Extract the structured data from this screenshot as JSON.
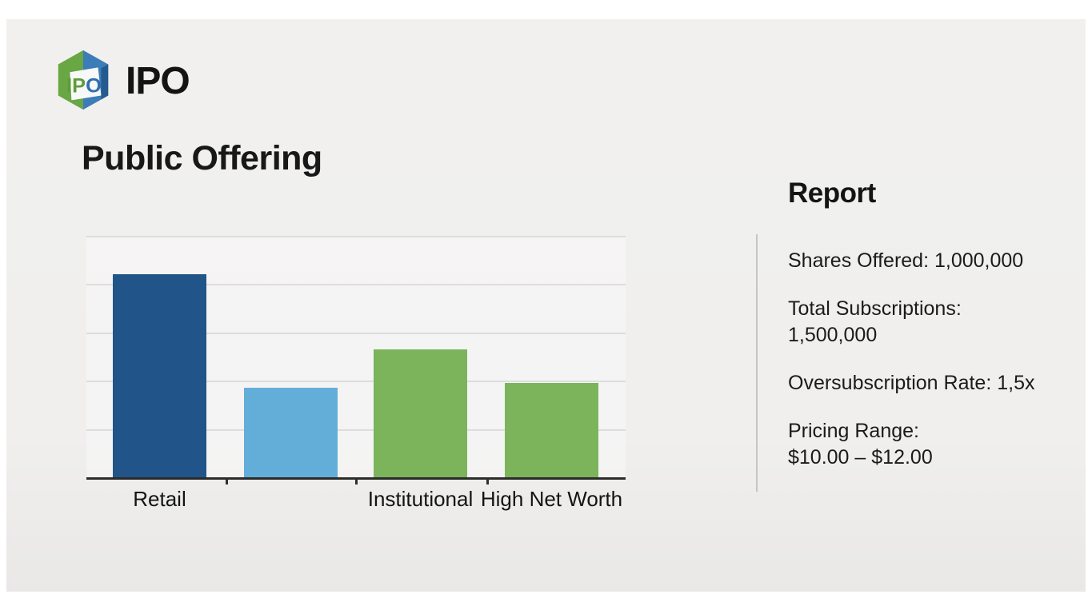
{
  "brand": {
    "logo_text": "IPO",
    "logo_colors": {
      "green": "#69a644",
      "blue": "#3c7cb8",
      "navy": "#245a8e"
    }
  },
  "slide": {
    "title": "Public Offering"
  },
  "chart_data": {
    "type": "bar",
    "title": "Public Offering",
    "categories": [
      "Retail",
      "",
      "Institutional",
      "High Net Worth"
    ],
    "values": [
      4.2,
      1.85,
      2.65,
      1.95
    ],
    "colors": [
      "#215589",
      "#63aed8",
      "#7cb45c",
      "#7cb45c"
    ],
    "xlabel": "",
    "ylabel": "",
    "ylim": [
      0,
      5
    ],
    "y_tick_labels": [],
    "gridlines": "horizontal",
    "legend": "none"
  },
  "report": {
    "heading": "Report",
    "items": [
      "Shares Offered: 1,000,000",
      "Total Subscriptions:\n1,500,000",
      "Oversubscription Rate: 1,5x",
      "Pricing Range:\n$10.00 – $12.00"
    ]
  },
  "colors": {
    "slide_background": "#f0efee",
    "axis": "#2b2b2b",
    "gridline": "#dedddc",
    "divider": "#c5c5c5",
    "text": "#1b1b1b"
  }
}
